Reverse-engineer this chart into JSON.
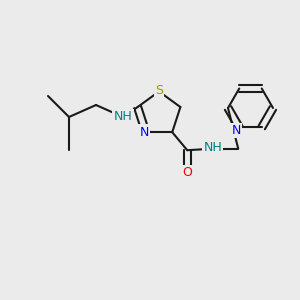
{
  "background_color": "#ebebeb",
  "bond_color": "#1a1a1a",
  "bond_width": 1.5,
  "atom_colors": {
    "N": "#0000ff",
    "O": "#ff0000",
    "S": "#999900",
    "NH": "#008080",
    "C": "#1a1a1a"
  },
  "font_size_atom": 9,
  "font_size_small": 7.5
}
